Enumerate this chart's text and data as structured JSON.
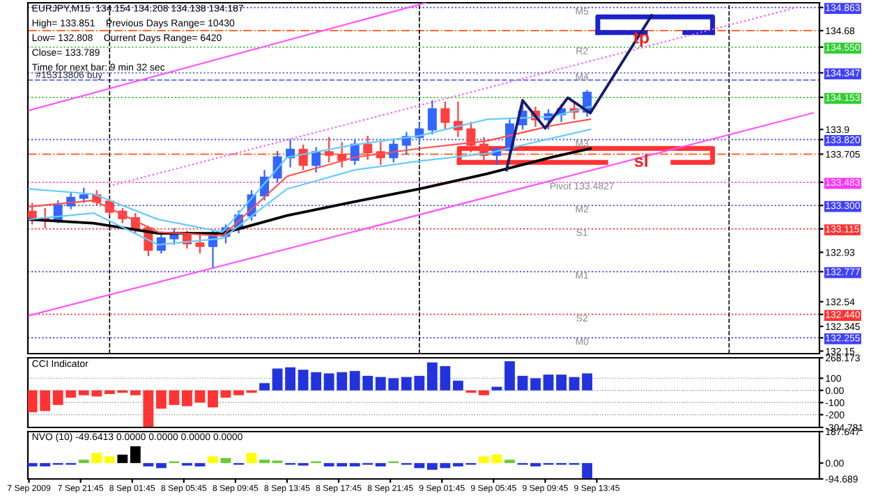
{
  "chart_data": [
    {
      "type": "candlestick",
      "x": [
        "2009-09-07T18:00",
        "2009-09-07T19:00",
        "2009-09-07T20:00",
        "2009-09-07T21:00",
        "2009-09-07T22:00",
        "2009-09-07T23:00",
        "2009-09-08T00:00",
        "2009-09-08T01:00",
        "2009-09-08T02:00",
        "2009-09-08T03:00",
        "2009-09-08T04:00",
        "2009-09-08T05:00",
        "2009-09-08T06:00",
        "2009-09-08T07:00",
        "2009-09-08T08:00",
        "2009-09-08T09:00",
        "2009-09-08T10:00",
        "2009-09-08T11:00",
        "2009-09-08T12:00",
        "2009-09-08T13:00",
        "2009-09-08T14:00",
        "2009-09-08T15:00",
        "2009-09-08T16:00",
        "2009-09-08T17:00",
        "2009-09-08T18:00",
        "2009-09-08T19:00",
        "2009-09-08T20:00",
        "2009-09-08T21:00",
        "2009-09-08T22:00",
        "2009-09-08T23:00",
        "2009-09-09T00:00",
        "2009-09-09T01:00",
        "2009-09-09T02:00",
        "2009-09-09T03:00",
        "2009-09-09T04:00",
        "2009-09-09T05:00",
        "2009-09-09T06:00",
        "2009-09-09T07:00",
        "2009-09-09T08:00",
        "2009-09-09T09:00",
        "2009-09-09T10:00",
        "2009-09-09T11:00",
        "2009-09-09T12:00",
        "2009-09-09T13:00"
      ],
      "ohlc": [
        [
          133.25,
          133.32,
          133.15,
          133.2
        ],
        [
          133.2,
          133.28,
          133.12,
          133.18
        ],
        [
          133.18,
          133.34,
          133.16,
          133.3
        ],
        [
          133.3,
          133.4,
          133.27,
          133.36
        ],
        [
          133.36,
          133.44,
          133.32,
          133.38
        ],
        [
          133.38,
          133.42,
          133.3,
          133.33
        ],
        [
          133.33,
          133.36,
          133.22,
          133.25
        ],
        [
          133.25,
          133.28,
          133.16,
          133.2
        ],
        [
          133.2,
          133.24,
          133.08,
          133.12
        ],
        [
          133.12,
          133.14,
          132.9,
          132.95
        ],
        [
          132.95,
          133.08,
          132.92,
          133.04
        ],
        [
          133.04,
          133.12,
          132.99,
          133.08
        ],
        [
          133.08,
          133.1,
          132.96,
          133.0
        ],
        [
          133.0,
          133.08,
          132.92,
          132.98
        ],
        [
          132.98,
          133.1,
          132.81,
          133.06
        ],
        [
          133.06,
          133.15,
          133.0,
          133.12
        ],
        [
          133.12,
          133.26,
          133.08,
          133.22
        ],
        [
          133.22,
          133.42,
          133.18,
          133.38
        ],
        [
          133.38,
          133.58,
          133.34,
          133.52
        ],
        [
          133.52,
          133.73,
          133.48,
          133.68
        ],
        [
          133.68,
          133.82,
          133.6,
          133.74
        ],
        [
          133.74,
          133.78,
          133.58,
          133.62
        ],
        [
          133.62,
          133.76,
          133.56,
          133.72
        ],
        [
          133.72,
          133.84,
          133.64,
          133.7
        ],
        [
          133.7,
          133.8,
          133.6,
          133.66
        ],
        [
          133.66,
          133.82,
          133.62,
          133.78
        ],
        [
          133.78,
          133.85,
          133.66,
          133.72
        ],
        [
          133.72,
          133.8,
          133.62,
          133.68
        ],
        [
          133.68,
          133.83,
          133.64,
          133.78
        ],
        [
          133.78,
          133.88,
          133.7,
          133.84
        ],
        [
          133.84,
          133.95,
          133.78,
          133.9
        ],
        [
          133.9,
          134.13,
          133.86,
          134.06
        ],
        [
          134.06,
          134.12,
          133.9,
          133.96
        ],
        [
          133.96,
          134.12,
          133.84,
          133.9
        ],
        [
          133.9,
          133.96,
          133.72,
          133.78
        ],
        [
          133.78,
          133.84,
          133.64,
          133.7
        ],
        [
          133.7,
          133.76,
          133.62,
          133.74
        ],
        [
          133.74,
          133.98,
          133.7,
          133.94
        ],
        [
          133.94,
          134.12,
          133.9,
          134.04
        ],
        [
          134.04,
          134.08,
          133.92,
          133.98
        ],
        [
          133.98,
          134.06,
          133.9,
          134.02
        ],
        [
          134.02,
          134.1,
          133.96,
          134.06
        ],
        [
          134.06,
          134.12,
          133.98,
          134.04
        ],
        [
          134.04,
          134.21,
          134.0,
          134.19
        ]
      ],
      "colors": [
        "#ff4040",
        "#ff4040",
        "#3366ff",
        "#3366ff",
        "#3366ff",
        "#ff4040",
        "#ff4040",
        "#ff4040",
        "#ff4040",
        "#ff4040",
        "#3366ff",
        "#3366ff",
        "#ff4040",
        "#ff4040",
        "#3366ff",
        "#3366ff",
        "#3366ff",
        "#3366ff",
        "#3366ff",
        "#3366ff",
        "#3366ff",
        "#ff4040",
        "#3366ff",
        "#ff4040",
        "#ff4040",
        "#3366ff",
        "#ff4040",
        "#ff4040",
        "#3366ff",
        "#3366ff",
        "#3366ff",
        "#3366ff",
        "#ff4040",
        "#ff4040",
        "#ff4040",
        "#ff4040",
        "#3366ff",
        "#3366ff",
        "#3366ff",
        "#ff4040",
        "#3366ff",
        "#3366ff",
        "#ff4040",
        "#3366ff"
      ],
      "series": [
        {
          "type": "line",
          "color": "#000000",
          "x": [
            "2009-09-07T17:45",
            "2009-09-07T22:45",
            "2009-09-08T03:45",
            "2009-09-08T08:45",
            "2009-09-08T13:45",
            "2009-09-08T19:00",
            "2009-09-09T00:00",
            "2009-09-09T05:15",
            "2009-09-09T10:15",
            "2009-09-09T13:15"
          ],
          "values": [
            133.19,
            133.16,
            133.08,
            133.08,
            133.22,
            133.33,
            133.43,
            133.55,
            133.68,
            133.75
          ]
        },
        {
          "type": "line",
          "color": "#ff5050",
          "x": [
            "2009-09-07T17:45",
            "2009-09-07T22:45",
            "2009-09-08T03:45",
            "2009-09-08T08:45",
            "2009-09-08T13:45",
            "2009-09-08T19:00",
            "2009-09-09T00:00",
            "2009-09-09T05:15",
            "2009-09-09T10:15",
            "2009-09-09T13:15"
          ],
          "values": [
            133.29,
            133.34,
            133.09,
            133.06,
            133.53,
            133.68,
            133.75,
            133.81,
            133.93,
            133.98
          ]
        },
        {
          "type": "line",
          "color": "#66ccff",
          "x": [
            "2009-09-07T17:45",
            "2009-09-07T22:45",
            "2009-09-08T03:45",
            "2009-09-08T08:45",
            "2009-09-08T13:45",
            "2009-09-08T19:00",
            "2009-09-09T00:00",
            "2009-09-09T05:15",
            "2009-09-09T10:15",
            "2009-09-09T13:15"
          ],
          "values": [
            133.43,
            133.39,
            133.19,
            133.09,
            133.68,
            133.78,
            133.85,
            133.98,
            134.0,
            134.08
          ]
        },
        {
          "type": "line",
          "color": "#66ccff",
          "x": [
            "2009-09-07T17:45",
            "2009-09-07T22:45",
            "2009-09-08T03:45",
            "2009-09-08T08:45",
            "2009-09-08T13:45",
            "2009-09-08T19:00",
            "2009-09-09T00:00",
            "2009-09-09T05:15",
            "2009-09-09T10:15",
            "2009-09-09T13:15"
          ],
          "values": [
            133.19,
            133.24,
            132.99,
            133.04,
            133.43,
            133.58,
            133.65,
            133.71,
            133.83,
            133.9
          ]
        },
        {
          "type": "line",
          "color": "#ff55ff",
          "x": [
            "2009-09-07T17:45",
            "2009-09-09T00:30"
          ],
          "values": [
            134.05,
            134.9
          ]
        },
        {
          "type": "line",
          "color": "#ff55ff",
          "x": [
            "2009-09-07T17:45",
            "2009-09-10T06:30"
          ],
          "values": [
            132.43,
            134.03
          ]
        },
        {
          "type": "line",
          "color": "#ff55ff",
          "line_style": "dotted",
          "x": [
            "2009-09-08T00:15",
            "2009-09-10T05:30"
          ],
          "values": [
            133.46,
            134.87
          ]
        },
        {
          "type": "line",
          "color": "#1a1a66",
          "x": [
            "2009-09-09T06:45",
            "2009-09-09T08:00",
            "2009-09-09T09:45",
            "2009-09-09T11:30",
            "2009-09-09T13:15",
            "2009-09-09T18:00"
          ],
          "values": [
            133.58,
            134.13,
            133.91,
            134.15,
            134.03,
            134.8
          ]
        }
      ],
      "ref_lines": [
        {
          "axis": "y",
          "value": 134.863,
          "label": "M5",
          "color": "#4040ff",
          "line_style": "dotted"
        },
        {
          "axis": "y",
          "value": 134.68,
          "label": "tp",
          "color": "#ff6633",
          "line_style": "dashdot"
        },
        {
          "axis": "y",
          "value": 134.55,
          "label": "R2",
          "color": "#33cc33",
          "line_style": "dotted"
        },
        {
          "axis": "y",
          "value": 134.347,
          "label": "M4",
          "color": "#4040ff",
          "line_style": "dotted"
        },
        {
          "axis": "y",
          "value": 134.29,
          "label": "#15313806 buy",
          "color": "#6677ff",
          "line_style": "dashed"
        },
        {
          "axis": "y",
          "value": 134.153,
          "color": "#33cc33",
          "line_style": "dotted"
        },
        {
          "axis": "y",
          "value": 133.82,
          "label": "M3",
          "color": "#4040ff",
          "line_style": "dotted"
        },
        {
          "axis": "y",
          "value": 133.705,
          "label": "sl",
          "color": "#ff6633",
          "line_style": "dashdot"
        },
        {
          "axis": "y",
          "value": 133.4827,
          "label": "Pivot 133.4827",
          "color": "#ff33ff",
          "line_style": "dotted"
        },
        {
          "axis": "y",
          "value": 133.3,
          "label": "M2",
          "color": "#4040ff",
          "line_style": "dotted"
        },
        {
          "axis": "y",
          "value": 133.115,
          "label": "S1",
          "color": "#ff3333",
          "line_style": "dotted"
        },
        {
          "axis": "y",
          "value": 132.777,
          "label": "M1",
          "color": "#4040ff",
          "line_style": "dotted"
        },
        {
          "axis": "y",
          "value": 132.44,
          "label": "S2",
          "color": "#ff3333",
          "line_style": "dotted"
        },
        {
          "axis": "y",
          "value": 132.255,
          "label": "M0",
          "color": "#4040ff",
          "line_style": "dotted"
        },
        {
          "axis": "x",
          "value": "2009-09-08T00:00",
          "color": "#000000",
          "line_style": "dashed"
        },
        {
          "axis": "x",
          "value": "2009-09-09T00:00",
          "color": "#000000",
          "line_style": "dashed"
        },
        {
          "axis": "x",
          "value": "2009-09-10T00:00",
          "color": "#000000",
          "line_style": "dashed"
        }
      ],
      "annotations": [
        "EURJPY,M15  134.154 134.208 134.138 134.187",
        "High= 133.851    Previous Days Range= 10430",
        "Low= 132.808    Current Days Range= 6420",
        "Close= 133.789",
        "Time for next bar: 9 min 32 sec"
      ],
      "xlim": [
        "2009-09-07T17:40",
        "2009-09-10T07:00"
      ],
      "ylim": [
        132.13,
        134.9
      ],
      "yticks": [
        132.15,
        {
          "value": 132.255,
          "label": "132.255"
        },
        132.345,
        {
          "value": 132.44,
          "label": "132.440"
        },
        132.54,
        132.777,
        132.93,
        133.115,
        {
          "value": 133.3,
          "label": "133.300"
        },
        {
          "value": 133.4827,
          "label": "133.483"
        },
        133.705,
        {
          "value": 133.82,
          "label": "133.820"
        },
        133.9,
        134.153,
        134.347,
        {
          "value": 134.55,
          "label": "134.550"
        },
        134.68,
        134.863
      ],
      "tick_labels": "y",
      "grid": false,
      "legend": false
    },
    {
      "type": "bar",
      "title": "CCI Indicator",
      "x": [
        "2009-09-07T18:00",
        "2009-09-07T19:00",
        "2009-09-07T20:00",
        "2009-09-07T21:00",
        "2009-09-07T22:00",
        "2009-09-07T23:00",
        "2009-09-08T00:00",
        "2009-09-08T01:00",
        "2009-09-08T02:00",
        "2009-09-08T03:00",
        "2009-09-08T04:00",
        "2009-09-08T05:00",
        "2009-09-08T06:00",
        "2009-09-08T07:00",
        "2009-09-08T08:00",
        "2009-09-08T09:00",
        "2009-09-08T10:00",
        "2009-09-08T11:00",
        "2009-09-08T12:00",
        "2009-09-08T13:00",
        "2009-09-08T14:00",
        "2009-09-08T15:00",
        "2009-09-08T16:00",
        "2009-09-08T17:00",
        "2009-09-08T18:00",
        "2009-09-08T19:00",
        "2009-09-08T20:00",
        "2009-09-08T21:00",
        "2009-09-08T22:00",
        "2009-09-08T23:00",
        "2009-09-09T00:00",
        "2009-09-09T01:00",
        "2009-09-09T02:00",
        "2009-09-09T03:00",
        "2009-09-09T04:00",
        "2009-09-09T05:00",
        "2009-09-09T06:00",
        "2009-09-09T07:00",
        "2009-09-09T08:00",
        "2009-09-09T09:00",
        "2009-09-09T10:00",
        "2009-09-09T11:00",
        "2009-09-09T12:00",
        "2009-09-09T13:00"
      ],
      "values": [
        -180,
        -170,
        -120,
        -60,
        -40,
        -50,
        -30,
        -20,
        -40,
        -300,
        -150,
        -120,
        -130,
        -100,
        -140,
        -60,
        -40,
        -20,
        60,
        180,
        190,
        170,
        150,
        140,
        150,
        160,
        120,
        110,
        100,
        110,
        120,
        230,
        200,
        80,
        -20,
        -40,
        30,
        240,
        120,
        100,
        130,
        130,
        110,
        140
      ],
      "colors": [
        "#ff3333",
        "#ff3333",
        "#ff3333",
        "#ff3333",
        "#ff3333",
        "#ff3333",
        "#ff3333",
        "#ff3333",
        "#ff3333",
        "#ff3333",
        "#ff3333",
        "#ff3333",
        "#ff3333",
        "#ff3333",
        "#ff3333",
        "#ff3333",
        "#ff3333",
        "#ff3333",
        "#2233dd",
        "#2233dd",
        "#2233dd",
        "#2233dd",
        "#2233dd",
        "#2233dd",
        "#2233dd",
        "#2233dd",
        "#2233dd",
        "#2233dd",
        "#2233dd",
        "#2233dd",
        "#2233dd",
        "#2233dd",
        "#2233dd",
        "#2233dd",
        "#ff3333",
        "#ff3333",
        "#2233dd",
        "#2233dd",
        "#2233dd",
        "#2233dd",
        "#2233dd",
        "#2233dd",
        "#2233dd",
        "#2233dd"
      ],
      "xlim": [
        "2009-09-07T17:40",
        "2009-09-10T07:00"
      ],
      "ylim": [
        -304.781,
        268.173
      ],
      "yticks": [
        {
          "value": -304.781,
          "label": "-304.781"
        },
        -200,
        -100,
        {
          "value": 0,
          "label": "0.00"
        },
        100,
        {
          "value": 268.173,
          "label": "268.173"
        }
      ],
      "tick_labels": "y",
      "grid": "y",
      "legend": false
    },
    {
      "type": "bar",
      "title": "NVO (10) -49.6413 0.0000 0.0000 0.0000 0.0000",
      "x": [
        "2009-09-07T18:00",
        "2009-09-07T19:00",
        "2009-09-07T20:00",
        "2009-09-07T21:00",
        "2009-09-07T22:00",
        "2009-09-07T23:00",
        "2009-09-08T00:00",
        "2009-09-08T01:00",
        "2009-09-08T02:00",
        "2009-09-08T03:00",
        "2009-09-08T04:00",
        "2009-09-08T05:00",
        "2009-09-08T06:00",
        "2009-09-08T07:00",
        "2009-09-08T08:00",
        "2009-09-08T09:00",
        "2009-09-08T10:00",
        "2009-09-08T11:00",
        "2009-09-08T12:00",
        "2009-09-08T13:00",
        "2009-09-08T14:00",
        "2009-09-08T15:00",
        "2009-09-08T16:00",
        "2009-09-08T17:00",
        "2009-09-08T18:00",
        "2009-09-08T19:00",
        "2009-09-08T20:00",
        "2009-09-08T21:00",
        "2009-09-08T22:00",
        "2009-09-08T23:00",
        "2009-09-09T00:00",
        "2009-09-09T01:00",
        "2009-09-09T02:00",
        "2009-09-09T03:00",
        "2009-09-09T04:00",
        "2009-09-09T05:00",
        "2009-09-09T06:00",
        "2009-09-09T07:00",
        "2009-09-09T08:00",
        "2009-09-09T09:00",
        "2009-09-09T10:00",
        "2009-09-09T11:00",
        "2009-09-09T12:00",
        "2009-09-09T13:00"
      ],
      "values": [
        -20,
        -20,
        -10,
        -10,
        20,
        60,
        40,
        50,
        100,
        -20,
        -30,
        10,
        -15,
        -20,
        40,
        30,
        -10,
        60,
        20,
        15,
        -10,
        -15,
        10,
        -20,
        -20,
        -20,
        -10,
        -20,
        10,
        -10,
        -30,
        -40,
        -30,
        -20,
        -10,
        40,
        50,
        20,
        -10,
        -20,
        -10,
        -10,
        -10,
        -90
      ],
      "colors": [
        "#2233dd",
        "#2233dd",
        "#2233dd",
        "#2233dd",
        "#66cc33",
        "#ffff00",
        "#ffff00",
        "#000000",
        "#000000",
        "#2233dd",
        "#2233dd",
        "#66cc33",
        "#2233dd",
        "#2233dd",
        "#ffff00",
        "#66cc33",
        "#2233dd",
        "#ffff00",
        "#66cc33",
        "#66cc33",
        "#2233dd",
        "#2233dd",
        "#66cc33",
        "#2233dd",
        "#2233dd",
        "#2233dd",
        "#2233dd",
        "#2233dd",
        "#66cc33",
        "#2233dd",
        "#2233dd",
        "#2233dd",
        "#2233dd",
        "#2233dd",
        "#2233dd",
        "#ffff00",
        "#ffff00",
        "#66cc33",
        "#2233dd",
        "#2233dd",
        "#2233dd",
        "#2233dd",
        "#2233dd",
        "#2233dd"
      ],
      "xlim": [
        "2009-09-07T17:40",
        "2009-09-10T07:00"
      ],
      "ylim": [
        -94.689,
        187.647
      ],
      "yticks": [
        {
          "value": -94.689,
          "label": "-94.689"
        },
        {
          "value": 0,
          "label": "0.00"
        },
        {
          "value": 187.647,
          "label": "187.647"
        }
      ],
      "xticks": [
        {
          "value": "2009-09-07T17:45",
          "label": "7 Sep 2009"
        },
        {
          "value": "2009-09-07T21:45",
          "label": "7 Sep 21:45"
        },
        {
          "value": "2009-09-08T01:45",
          "label": "8 Sep 01:45"
        },
        {
          "value": "2009-09-08T05:45",
          "label": "8 Sep 05:45"
        },
        {
          "value": "2009-09-08T09:45",
          "label": "8 Sep 09:45"
        },
        {
          "value": "2009-09-08T13:45",
          "label": "8 Sep 13:45"
        },
        {
          "value": "2009-09-08T17:45",
          "label": "8 Sep 17:45"
        },
        {
          "value": "2009-09-08T21:45",
          "label": "8 Sep 21:45"
        },
        {
          "value": "2009-09-09T01:45",
          "label": "9 Sep 01:45"
        },
        {
          "value": "2009-09-09T05:45",
          "label": "9 Sep 05:45"
        },
        {
          "value": "2009-09-09T09:45",
          "label": "9 Sep 09:45"
        },
        {
          "value": "2009-09-09T13:45",
          "label": "9 Sep 13:45"
        }
      ],
      "grid": false,
      "legend": false
    }
  ]
}
